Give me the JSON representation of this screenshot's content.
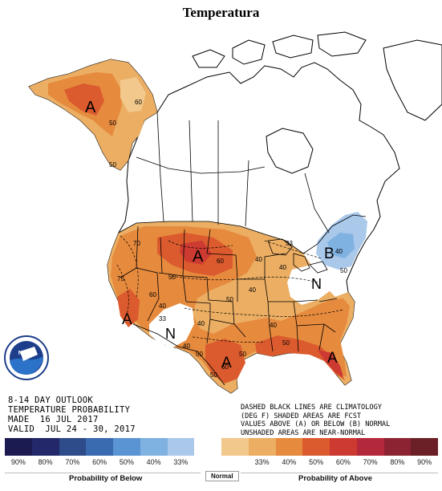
{
  "title": "Temperatura",
  "outlook": {
    "line1": "8-14 DAY OUTLOOK",
    "line2": "TEMPERATURE PROBABILITY",
    "line3": "MADE  16 JUL 2017",
    "line4": "VALID  JUL 24 - 30, 2017"
  },
  "notes": {
    "line1": "DASHED BLACK LINES ARE CLIMATOLOGY",
    "line2": "(DEG F) SHADED AREAS ARE FCST",
    "line3": "VALUES ABOVE (A) OR BELOW (B) NORMAL",
    "line4": "UNSHADED AREAS ARE NEAR-NORMAL"
  },
  "map_labels": {
    "alaska_above": "A",
    "west_above": "A",
    "plains_above": "A",
    "texas_above": "A",
    "florida_above": "A",
    "northeast_below": "B",
    "northeast_normal": "N",
    "southwest_normal": "N"
  },
  "contour_values": {
    "alaska_60": "60",
    "alaska_50_a": "50",
    "alaska_50_b": "50",
    "dakota_60": "60",
    "great_lakes_40": "40",
    "great_lakes_40b": "40",
    "northeast_40": "40",
    "northeast_50": "50",
    "west_75": "75",
    "west_70": "70",
    "west_60": "60",
    "west_50": "50",
    "west_40": "40",
    "west_33": "33",
    "southwest_40": "40",
    "southwest_50": "50",
    "texas_40": "40",
    "texas_50": "50",
    "texas_60": "60",
    "texas_50b": "50",
    "southeast_50": "50",
    "southeast_40": "40",
    "plains_50": "50",
    "plains_40": "40",
    "midwest_33": "33"
  },
  "legend": {
    "colors": [
      "#1b1b52",
      "#23286b",
      "#2f4c8a",
      "#3a6bb1",
      "#5a94d2",
      "#7fb1e1",
      "#a9c8ea",
      "#ffffff",
      "#f2c88c",
      "#ebae63",
      "#e68a3e",
      "#db5a2e",
      "#cc3a31",
      "#b4283b",
      "#8c2332",
      "#6b1f26"
    ],
    "ticks": [
      "90%",
      "80%",
      "70%",
      "60%",
      "50%",
      "40%",
      "33%",
      "33%",
      "40%",
      "50%",
      "60%",
      "70%",
      "80%",
      "90%"
    ],
    "below_label": "Probability of Below",
    "normal_label": "Normal",
    "above_label": "Probability of Above"
  }
}
